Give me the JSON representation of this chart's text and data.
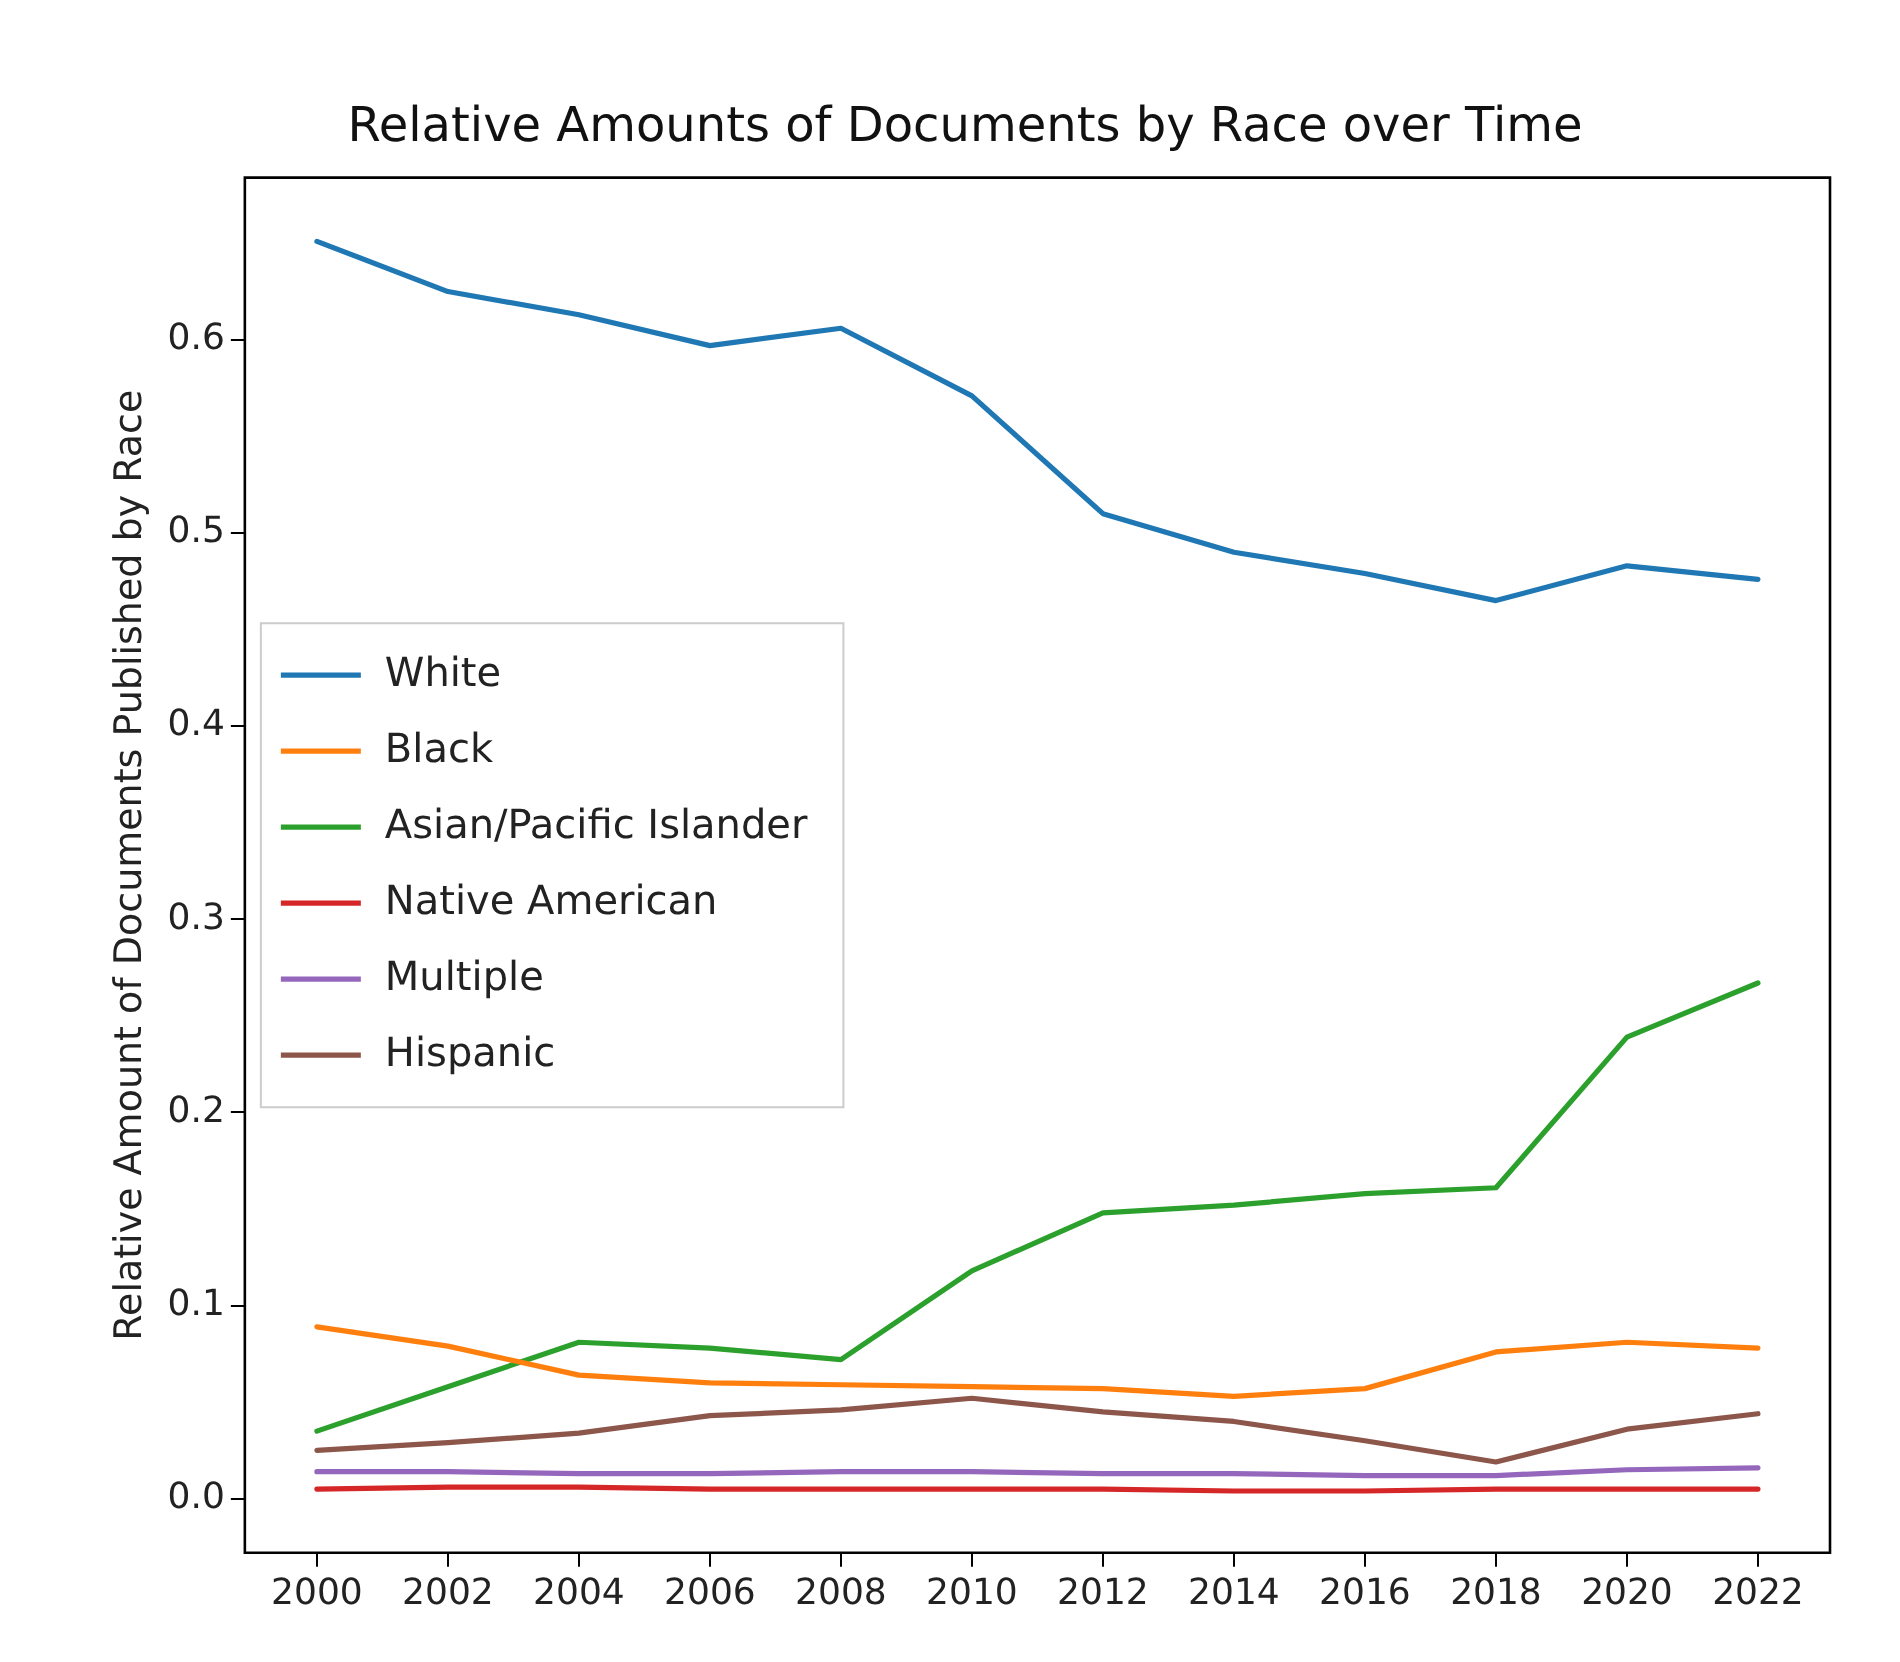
{
  "chart_data": {
    "type": "line",
    "title": "Relative Amounts of Documents by Race over Time",
    "ylabel": "Relative Amount of Documents Published by Race",
    "x": [
      2000,
      2002,
      2004,
      2006,
      2008,
      2010,
      2012,
      2014,
      2016,
      2018,
      2020,
      2022
    ],
    "xlim": [
      1998.9,
      2023.1
    ],
    "xticks": [
      2000,
      2002,
      2004,
      2006,
      2008,
      2010,
      2012,
      2014,
      2016,
      2018,
      2020,
      2022
    ],
    "ylim": [
      -0.028,
      0.684
    ],
    "yticks": [
      {
        "value": 0,
        "label": "0.0"
      },
      {
        "value": 0.1,
        "label": "0.1"
      },
      {
        "value": 0.2,
        "label": "0.2"
      },
      {
        "value": 0.3,
        "label": "0.3"
      },
      {
        "value": 0.4,
        "label": "0.4"
      },
      {
        "value": 0.5,
        "label": "0.5"
      },
      {
        "value": 0.6,
        "label": "0.6"
      }
    ],
    "grid": false,
    "legend": "center left",
    "series": [
      {
        "name": "White",
        "color": "#1f77b4",
        "values": [
          0.651,
          0.625,
          0.613,
          0.597,
          0.606,
          0.571,
          0.51,
          0.49,
          0.479,
          0.465,
          0.483,
          0.476
        ]
      },
      {
        "name": "Black",
        "color": "#ff7f0e",
        "values": [
          0.089,
          0.079,
          0.064,
          0.06,
          0.059,
          0.058,
          0.057,
          0.053,
          0.057,
          0.076,
          0.081,
          0.078
        ]
      },
      {
        "name": "Asian/Pacific Islander",
        "color": "#2ca02c",
        "values": [
          0.035,
          0.058,
          0.081,
          0.078,
          0.072,
          0.118,
          0.148,
          0.152,
          0.158,
          0.161,
          0.239,
          0.267
        ]
      },
      {
        "name": "Native American",
        "color": "#d62728",
        "values": [
          0.005,
          0.006,
          0.006,
          0.005,
          0.005,
          0.005,
          0.005,
          0.004,
          0.004,
          0.005,
          0.005,
          0.005
        ]
      },
      {
        "name": "Multiple",
        "color": "#9467bd",
        "values": [
          0.014,
          0.014,
          0.013,
          0.013,
          0.014,
          0.014,
          0.013,
          0.013,
          0.012,
          0.012,
          0.015,
          0.016
        ]
      },
      {
        "name": "Hispanic",
        "color": "#8c564b",
        "values": [
          0.025,
          0.029,
          0.034,
          0.043,
          0.046,
          0.052,
          0.045,
          0.04,
          0.03,
          0.019,
          0.036,
          0.044
        ]
      }
    ]
  }
}
